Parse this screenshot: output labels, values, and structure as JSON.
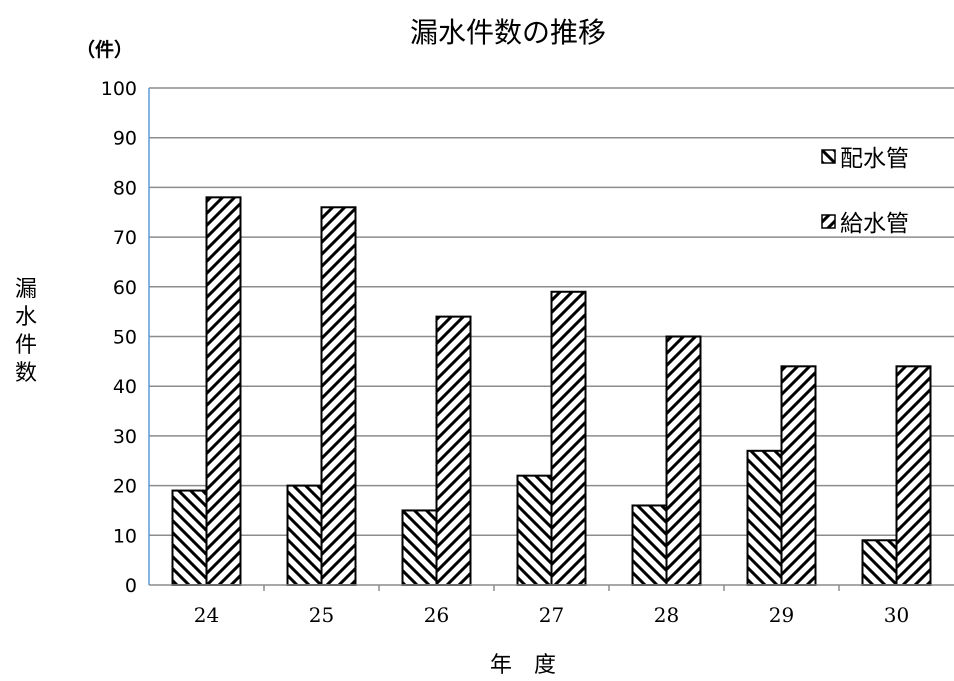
{
  "chart_data": {
    "type": "bar",
    "title": "漏水件数の推移",
    "xlabel": "年　度",
    "ylabel": "漏水件数",
    "yunit": "（件）",
    "categories": [
      "24",
      "25",
      "26",
      "27",
      "28",
      "29",
      "30"
    ],
    "series": [
      {
        "name": "配水管",
        "values": [
          19,
          20,
          15,
          22,
          16,
          27,
          9
        ],
        "pattern": "backslash-hatch"
      },
      {
        "name": "給水管",
        "values": [
          78,
          76,
          54,
          59,
          50,
          44,
          44
        ],
        "pattern": "slash-hatch"
      }
    ],
    "ylim": [
      0,
      100
    ],
    "yticks": [
      0,
      10,
      20,
      30,
      40,
      50,
      60,
      70,
      80,
      90,
      100
    ],
    "grid": true,
    "legend_position": "right",
    "colors": {
      "bar_stroke": "#000000",
      "hatch": "#000000",
      "grid": "#8c8c8c",
      "axis": "#5b9bd5"
    }
  }
}
